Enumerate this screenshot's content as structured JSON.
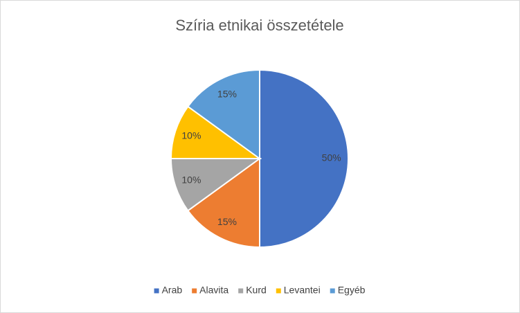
{
  "chart_data": {
    "type": "pie",
    "title": "Szíria etnikai összetétele",
    "categories": [
      "Arab",
      "Alavita",
      "Kurd",
      "Levantei",
      "Egyéb"
    ],
    "values": [
      50,
      15,
      10,
      10,
      15
    ],
    "value_labels": [
      "50%",
      "15%",
      "10%",
      "10%",
      "15%"
    ],
    "colors": [
      "#4472c4",
      "#ed7d31",
      "#a5a5a5",
      "#ffc000",
      "#5b9bd5"
    ],
    "legend": "bottom"
  }
}
